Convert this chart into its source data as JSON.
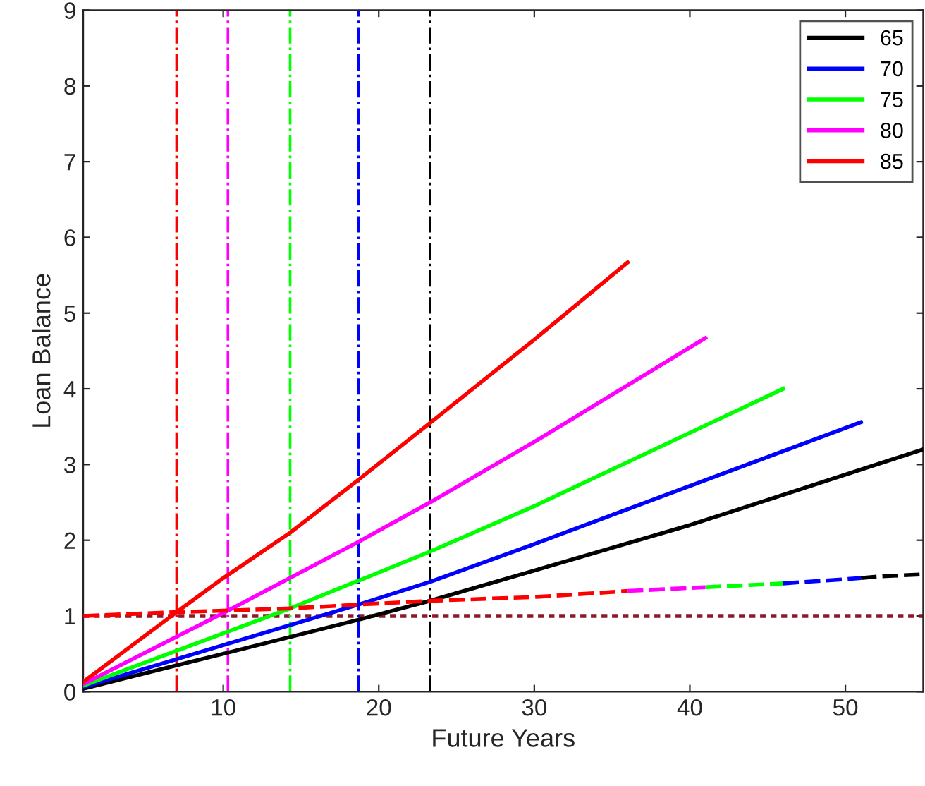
{
  "chart_data": {
    "type": "line",
    "xlabel": "Future Years",
    "ylabel": "Loan Balance",
    "xlim": [
      1,
      55
    ],
    "ylim": [
      0,
      9
    ],
    "xticks": [
      10,
      20,
      30,
      40,
      50
    ],
    "yticks": [
      0,
      1,
      2,
      3,
      4,
      5,
      6,
      7,
      8,
      9
    ],
    "grid": false,
    "legend": "top right",
    "marker": "none",
    "series": [
      {
        "name": "65",
        "color": "#000000",
        "line_style": "solid",
        "x": [
          1,
          10,
          18.7,
          23.3,
          30,
          40,
          55
        ],
        "values": [
          0.04,
          0.5,
          0.95,
          1.2,
          1.6,
          2.2,
          3.2
        ]
      },
      {
        "name": "70",
        "color": "#0000ff",
        "line_style": "solid",
        "x": [
          1,
          18.7,
          23.3,
          30,
          51
        ],
        "values": [
          0.06,
          1.15,
          1.45,
          1.95,
          3.56
        ]
      },
      {
        "name": "75",
        "color": "#00ff00",
        "line_style": "solid",
        "x": [
          1,
          14.3,
          23.3,
          30,
          46
        ],
        "values": [
          0.08,
          1.1,
          1.85,
          2.45,
          4.0
        ]
      },
      {
        "name": "80",
        "color": "#ff00ff",
        "line_style": "solid",
        "x": [
          1,
          10.3,
          18.7,
          23.3,
          30,
          41
        ],
        "values": [
          0.1,
          1.07,
          1.98,
          2.5,
          3.3,
          4.67
        ]
      },
      {
        "name": "85",
        "color": "#ff0000",
        "line_style": "solid",
        "x": [
          1,
          7,
          10,
          14.3,
          18.7,
          23.3,
          30,
          36
        ],
        "values": [
          0.13,
          1.05,
          1.5,
          2.1,
          2.8,
          3.55,
          4.65,
          5.67
        ]
      },
      {
        "color": "#000000",
        "line_style": "dashed",
        "x": [
          51,
          52,
          55
        ],
        "values": [
          1.5,
          1.52,
          1.55
        ]
      },
      {
        "color": "#0000ff",
        "line_style": "dashed",
        "x": [
          46,
          51
        ],
        "values": [
          1.43,
          1.5
        ]
      },
      {
        "color": "#00ff00",
        "line_style": "dashed",
        "x": [
          41,
          46
        ],
        "values": [
          1.38,
          1.43
        ]
      },
      {
        "color": "#ff00ff",
        "line_style": "dashed",
        "x": [
          36,
          41
        ],
        "values": [
          1.33,
          1.38
        ]
      },
      {
        "color": "#ff0000",
        "line_style": "dashed",
        "x": [
          1,
          7,
          10,
          14.3,
          18.7,
          23.3,
          30,
          36
        ],
        "values": [
          1.0,
          1.05,
          1.07,
          1.1,
          1.15,
          1.2,
          1.25,
          1.33
        ]
      }
    ],
    "ref_lines": [
      {
        "axis": "y",
        "value": 1,
        "color": "#8b1a2b",
        "line_style": "dotted"
      },
      {
        "axis": "x",
        "value": 7.0,
        "color": "#ff0000",
        "line_style": "dashdot"
      },
      {
        "axis": "x",
        "value": 10.3,
        "color": "#ff00ff",
        "line_style": "dashdot"
      },
      {
        "axis": "x",
        "value": 14.3,
        "color": "#00ff00",
        "line_style": "dashdot"
      },
      {
        "axis": "x",
        "value": 18.7,
        "color": "#0000ff",
        "line_style": "dashdot"
      },
      {
        "axis": "x",
        "value": 23.3,
        "color": "#000000",
        "line_style": "dashdot"
      }
    ]
  }
}
